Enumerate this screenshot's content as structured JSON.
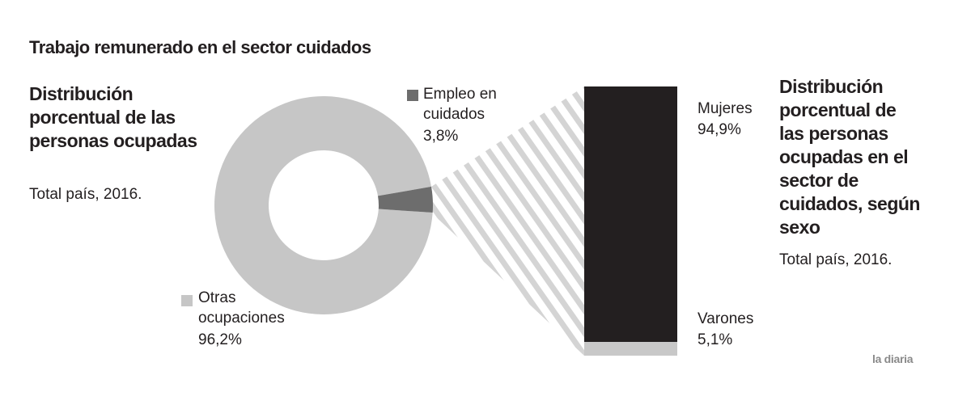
{
  "title": "Trabajo remunerado en el sector cuidados",
  "source": "la diaria",
  "chart_data": [
    {
      "type": "donut",
      "title": "Distribución porcentual de las personas ocupadas",
      "subtitle": "Total país, 2016.",
      "categories": [
        "Otras ocupaciones",
        "Empleo en cuidados"
      ],
      "values": [
        96.2,
        3.8
      ],
      "value_labels": [
        "96,2%",
        "3,8%"
      ],
      "colors": [
        "#c6c6c6",
        "#6d6d6d"
      ]
    },
    {
      "type": "stacked-bar",
      "title": "Distribución porcentual de las personas ocupadas en el sector de cuidados, según sexo",
      "subtitle": "Total país, 2016.",
      "categories": [
        "Mujeres",
        "Varones"
      ],
      "values": [
        94.9,
        5.1
      ],
      "value_labels": [
        "94,9%",
        "5,1%"
      ],
      "colors": [
        "#231f20",
        "#c8c8c8"
      ]
    }
  ]
}
